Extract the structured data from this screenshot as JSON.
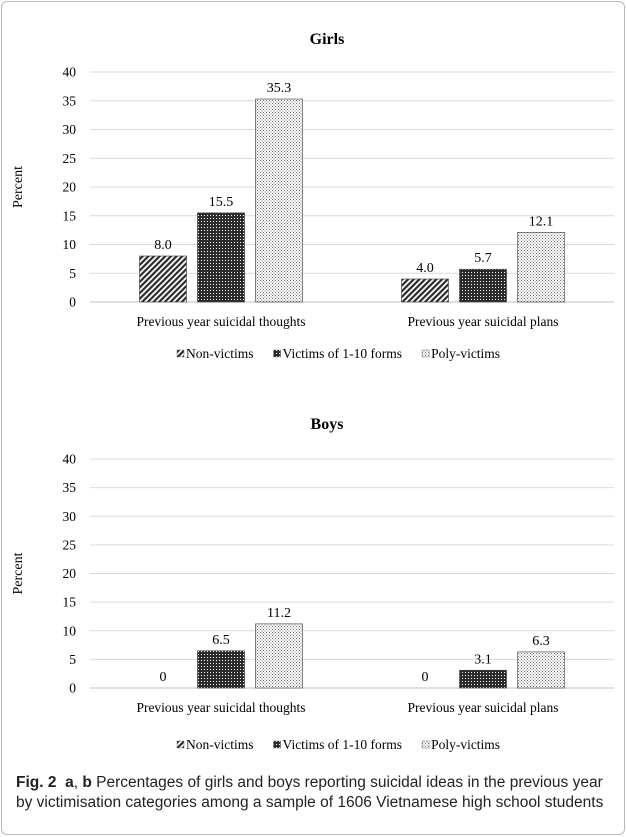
{
  "chart_data": [
    {
      "type": "bar",
      "panel": "a",
      "title": "Girls",
      "ylabel": "Percent",
      "xlabel": "",
      "ylim": [
        0,
        40
      ],
      "yticks": [
        "0",
        "5",
        "10",
        "15",
        "20",
        "25",
        "30",
        "35",
        "40"
      ],
      "categories": [
        "Previous year suicidal thoughts",
        "Previous year suicidal plans"
      ],
      "series": [
        {
          "name": "Non-victims",
          "values": [
            8.0,
            4.0
          ],
          "labels": [
            "8.0",
            "4.0"
          ],
          "pattern": "diagonal-hatch"
        },
        {
          "name": "Victims of 1-10 forms",
          "values": [
            15.5,
            5.7
          ],
          "labels": [
            "15.5",
            "5.7"
          ],
          "pattern": "dense-dots"
        },
        {
          "name": "Poly-victims",
          "values": [
            35.3,
            12.1
          ],
          "labels": [
            "35.3",
            "12.1"
          ],
          "pattern": "sparse-dots"
        }
      ],
      "grid": true,
      "legend": "bottom"
    },
    {
      "type": "bar",
      "panel": "b",
      "title": "Boys",
      "ylabel": "Percent",
      "xlabel": "",
      "ylim": [
        0,
        40
      ],
      "yticks": [
        "0",
        "5",
        "10",
        "15",
        "20",
        "25",
        "30",
        "35",
        "40"
      ],
      "categories": [
        "Previous year suicidal thoughts",
        "Previous year suicidal plans"
      ],
      "series": [
        {
          "name": "Non-victims",
          "values": [
            0,
            0
          ],
          "labels": [
            "0",
            "0"
          ],
          "pattern": "diagonal-hatch"
        },
        {
          "name": "Victims of 1-10 forms",
          "values": [
            6.5,
            3.1
          ],
          "labels": [
            "6.5",
            "3.1"
          ],
          "pattern": "dense-dots"
        },
        {
          "name": "Poly-victims",
          "values": [
            11.2,
            6.3
          ],
          "labels": [
            "11.2",
            "6.3"
          ],
          "pattern": "sparse-dots"
        }
      ],
      "grid": true,
      "legend": "bottom"
    }
  ],
  "caption": {
    "label": "Fig. 2",
    "panel_a": "a",
    "separator": ",",
    "panel_b": "b",
    "text": " Percentages of girls and boys reporting suicidal ideas in the previous year by victimisation categories among a sample of 1606 Vietnamese high school students"
  },
  "colors": {
    "bar_fill": "#2b2b2b",
    "grid": "#d9d9d9",
    "axis": "#bfbfbf",
    "text": "#000000"
  }
}
